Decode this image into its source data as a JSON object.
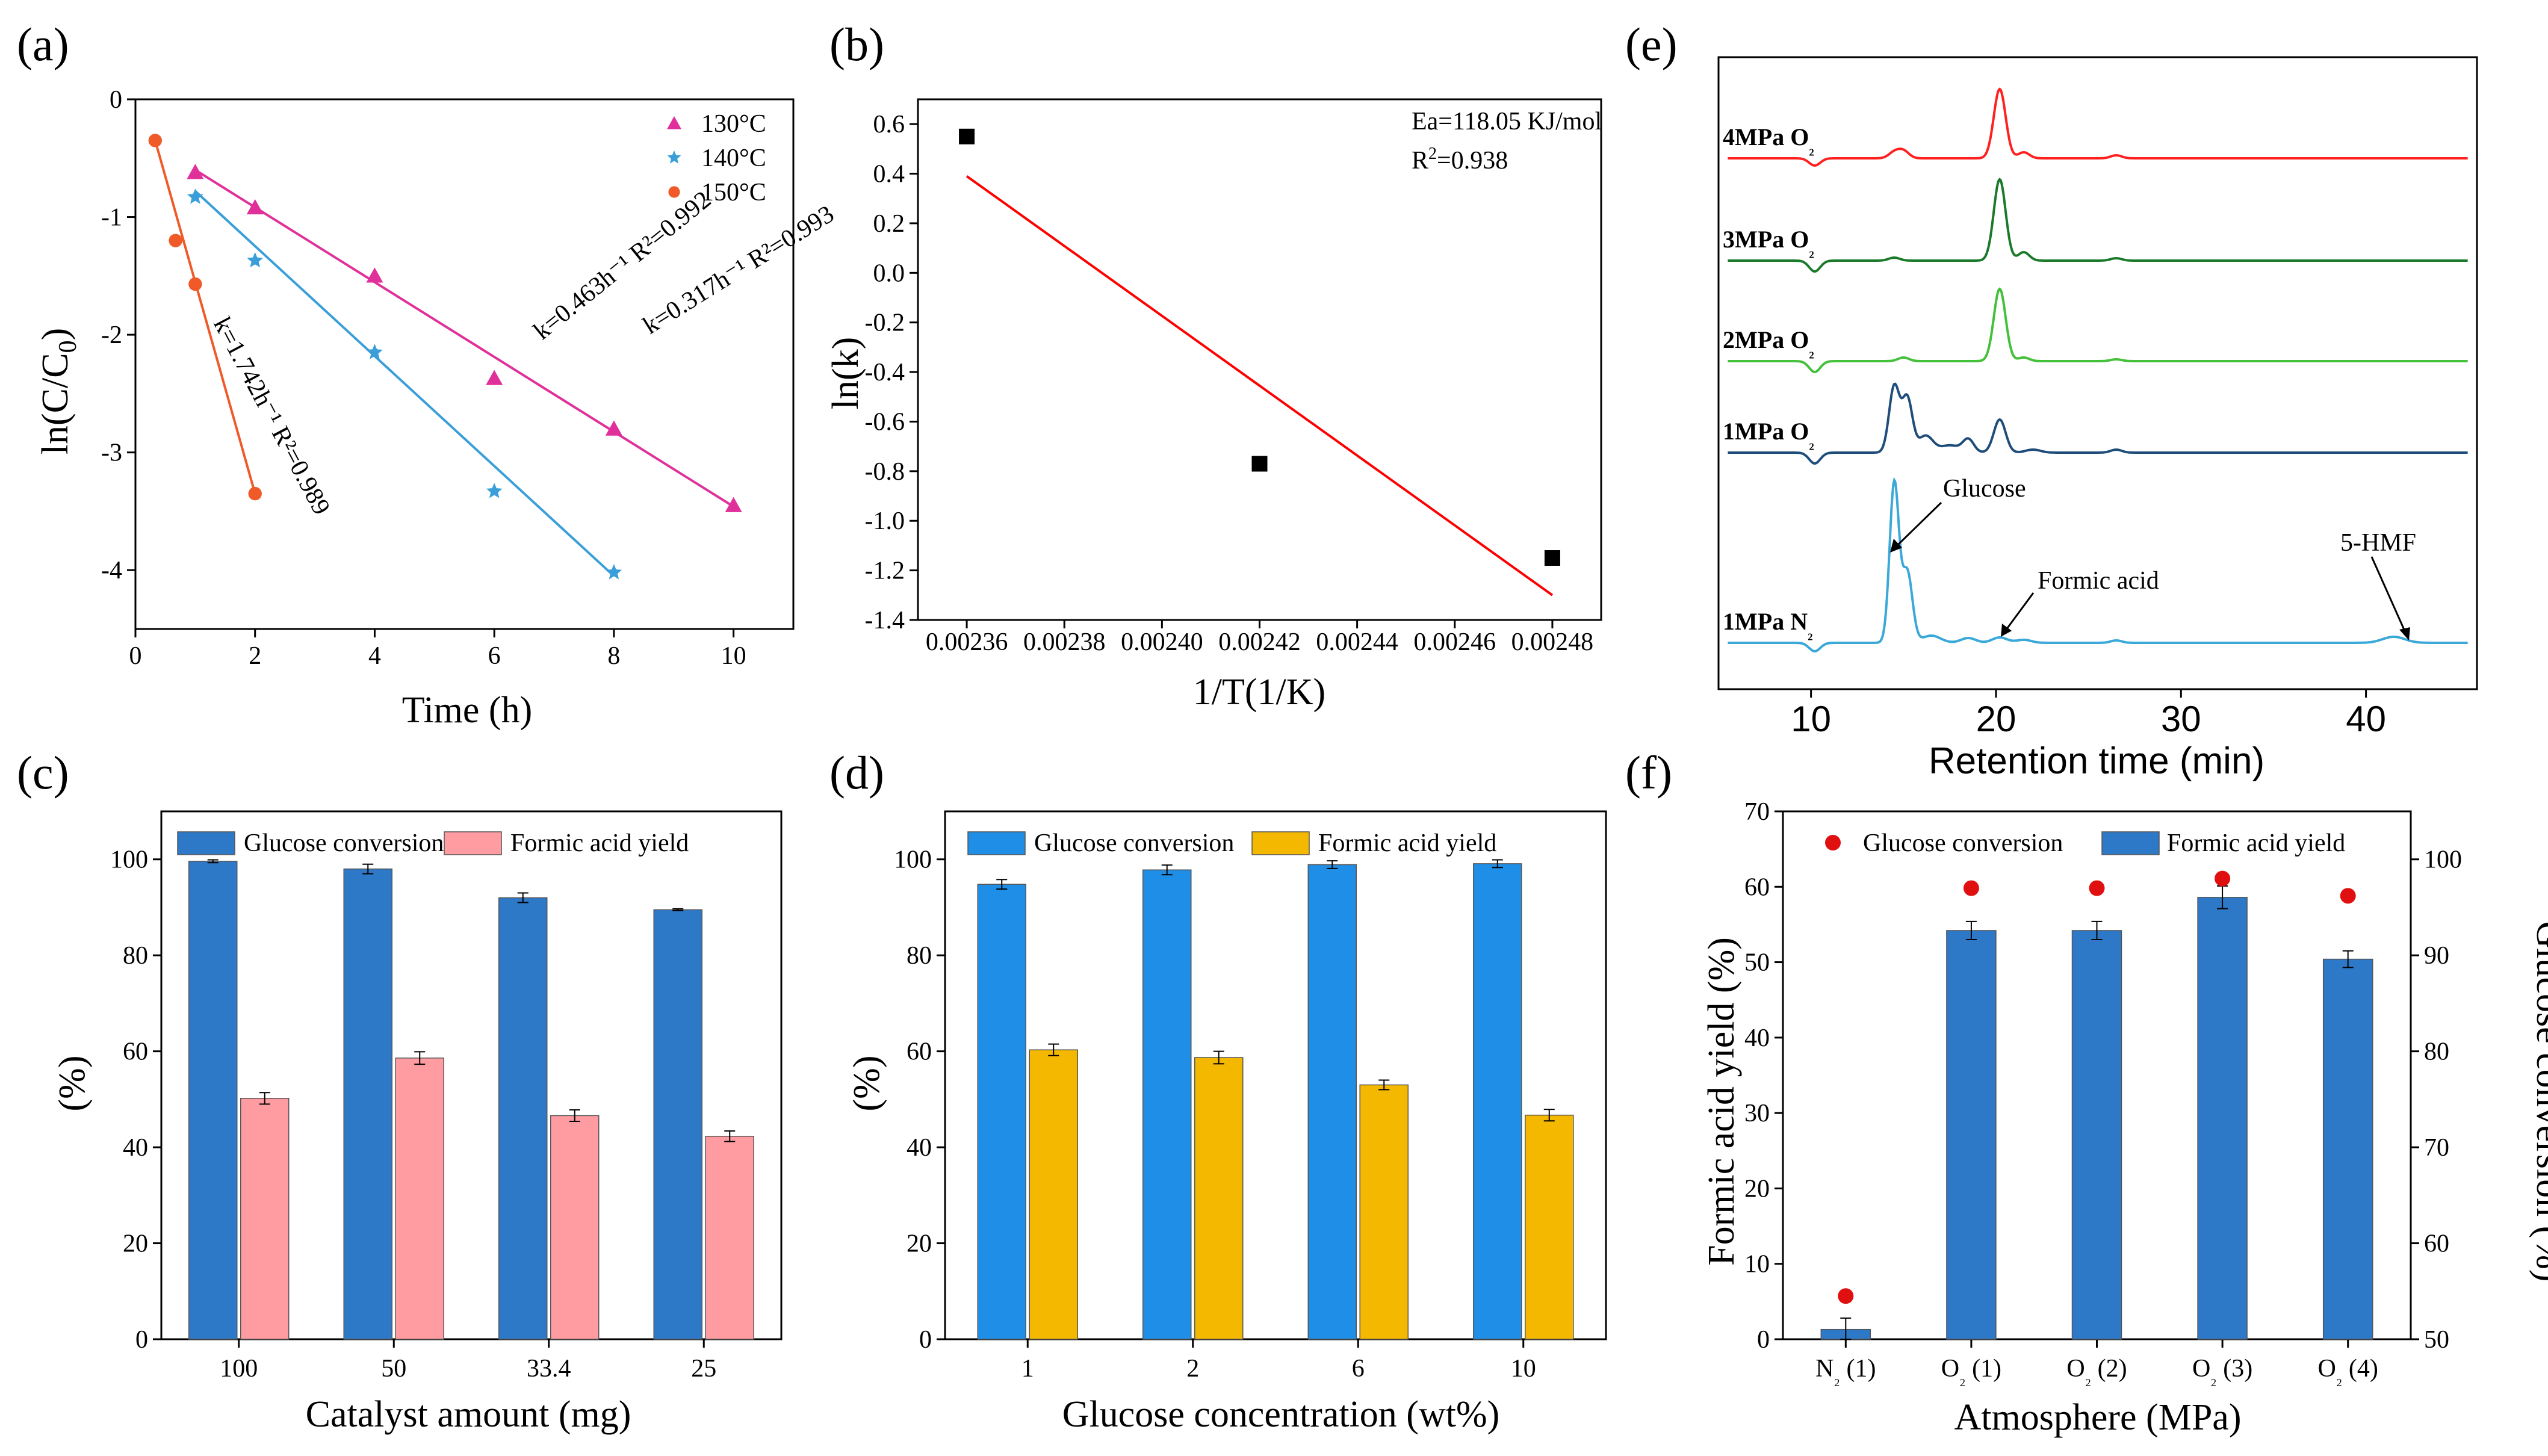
{
  "chart_data": [
    {
      "panel": "(a)",
      "type": "scatter",
      "xlabel": "Time (h)",
      "ylabel": "ln(C/C0)",
      "xlim": [
        0,
        11
      ],
      "ylim": [
        -4.5,
        0
      ],
      "xticks": [
        0,
        2,
        4,
        6,
        8,
        10
      ],
      "yticks": [
        0,
        -1,
        -2,
        -3,
        -4
      ],
      "legend_position": "top-right",
      "series": [
        {
          "name": "130°C",
          "color": "#e0309a",
          "marker": "triangle",
          "x": [
            1,
            2,
            4,
            6,
            8,
            10
          ],
          "y": [
            -0.62,
            -0.92,
            -1.5,
            -2.37,
            -2.8,
            -3.45
          ],
          "fit": {
            "x0": 1,
            "y0": -0.6,
            "x1": 10,
            "y1": -3.46
          },
          "annotation": "k=0.317h⁻¹ R²=0.993"
        },
        {
          "name": "140°C",
          "color": "#3a9fd8",
          "marker": "star",
          "x": [
            1,
            2,
            4,
            6,
            8
          ],
          "y": [
            -0.83,
            -1.37,
            -2.15,
            -3.33,
            -4.02
          ],
          "fit": {
            "x0": 1,
            "y0": -0.78,
            "x1": 8,
            "y1": -4.05
          },
          "annotation": "k=0.463h⁻¹ R²=0.992"
        },
        {
          "name": "150°C",
          "color": "#f05a28",
          "marker": "circle",
          "x": [
            0.33,
            0.67,
            1,
            2
          ],
          "y": [
            -0.35,
            -1.2,
            -1.57,
            -3.35
          ],
          "fit": {
            "x0": 0.33,
            "y0": -0.35,
            "x1": 2,
            "y1": -3.35
          },
          "annotation": "k=1.742h⁻¹ R²=0.989"
        }
      ]
    },
    {
      "panel": "(b)",
      "type": "scatter",
      "xlabel": "1/T(1/K)",
      "ylabel": "ln(k)",
      "xlim": [
        0.00235,
        0.00249
      ],
      "ylim": [
        -1.4,
        0.7
      ],
      "xticks": [
        "0.00236",
        "0.00238",
        "0.00240",
        "0.00242",
        "0.00244",
        "0.00246",
        "0.00248"
      ],
      "yticks": [
        "0.6",
        "0.4",
        "0.2",
        "0.0",
        "-0.2",
        "-0.4",
        "-0.6",
        "-0.8",
        "-1.0",
        "-1.2",
        "-1.4"
      ],
      "points": {
        "x": [
          0.00236,
          0.00242,
          0.00248
        ],
        "y": [
          0.55,
          -0.77,
          -1.15
        ]
      },
      "fit": {
        "x0": 0.00236,
        "y0": 0.39,
        "x1": 0.00248,
        "y1": -1.3,
        "color": "#ff0000"
      },
      "annotation_1": "Ea=118.05 KJ/mol",
      "annotation_2": "R²=0.938"
    },
    {
      "panel": "(e)",
      "type": "line",
      "xlabel": "Retention time (min)",
      "xlim": [
        5,
        46
      ],
      "xticks": [
        10,
        20,
        30,
        40
      ],
      "traces": [
        {
          "name": "4MPa O₂",
          "color": "#ff2020"
        },
        {
          "name": "3MPa O₂",
          "color": "#1a7a2a"
        },
        {
          "name": "2MPa O₂",
          "color": "#44c03a"
        },
        {
          "name": "1MPa O₂",
          "color": "#1f4d7a"
        },
        {
          "name": "1MPa N₂",
          "color": "#3aa8d8"
        }
      ],
      "peak_labels": [
        "Glucose",
        "Formic acid",
        "5-HMF"
      ]
    },
    {
      "panel": "(c)",
      "type": "bar",
      "xlabel": "Catalyst amount (mg)",
      "ylabel": "(%)",
      "ylim": [
        0,
        110
      ],
      "yticks": [
        0,
        20,
        40,
        60,
        80,
        100
      ],
      "categories": [
        "100",
        "50",
        "33.4",
        "25"
      ],
      "series": [
        {
          "name": "Glucose conversion",
          "color": "#2e78c8",
          "values": [
            99.6,
            98.0,
            92.0,
            89.5
          ],
          "errors": [
            0.3,
            1.0,
            1.0,
            0.2
          ]
        },
        {
          "name": "Formic acid yield",
          "color": "#ff9ca2",
          "values": [
            50.2,
            58.6,
            46.6,
            42.3
          ],
          "errors": [
            1.2,
            1.3,
            1.2,
            1.1
          ]
        }
      ]
    },
    {
      "panel": "(d)",
      "type": "bar",
      "xlabel": "Glucose concentration (wt%)",
      "ylabel": "(%)",
      "ylim": [
        0,
        110
      ],
      "yticks": [
        0,
        20,
        40,
        60,
        80,
        100
      ],
      "categories": [
        "1",
        "2",
        "6",
        "10"
      ],
      "series": [
        {
          "name": "Glucose conversion",
          "color": "#1f8ee6",
          "values": [
            94.8,
            97.8,
            98.9,
            99.1
          ],
          "errors": [
            1.0,
            1.0,
            0.8,
            0.8
          ]
        },
        {
          "name": "Formic acid yield",
          "color": "#f5b800",
          "values": [
            60.3,
            58.7,
            53.0,
            46.7
          ],
          "errors": [
            1.2,
            1.3,
            1.0,
            1.2
          ]
        }
      ]
    },
    {
      "panel": "(f)",
      "type": "bar",
      "xlabel": "Atmosphere (MPa)",
      "ylabel": "Formic acid yield (%)",
      "ylabel_right": "Glucose conversion (%)",
      "ylim": [
        0,
        70
      ],
      "ylim_right": [
        50,
        105
      ],
      "yticks": [
        0,
        10,
        20,
        30,
        40,
        50,
        60,
        70
      ],
      "yticks_right": [
        50,
        60,
        70,
        80,
        90,
        100
      ],
      "categories": [
        "N₂ (1)",
        "O₂ (1)",
        "O₂ (2)",
        "O₂ (3)",
        "O₂ (4)"
      ],
      "bars": {
        "name": "Formic acid yield",
        "color": "#2e78c8",
        "values": [
          1.3,
          54.2,
          54.2,
          58.6,
          50.4
        ],
        "errors": [
          1.5,
          1.2,
          1.2,
          1.5,
          1.1
        ]
      },
      "points": {
        "name": "Glucose conversion",
        "color": "#e01010",
        "values": [
          54.5,
          97.0,
          97.0,
          98.0,
          96.2
        ]
      }
    }
  ],
  "labels": {
    "a_panel": "(a)",
    "b_panel": "(b)",
    "c_panel": "(c)",
    "d_panel": "(d)",
    "e_panel": "(e)",
    "f_panel": "(f)",
    "a_xlabel": "Time (h)",
    "b_xlabel": "1/T(1/K)",
    "b_ylabel": "ln(k)",
    "b_ann1": "Ea=118.05 KJ/mol",
    "c_xlabel": "Catalyst amount (mg)",
    "c_ylabel": "(%)",
    "d_xlabel": "Glucose concentration (wt%)",
    "d_ylabel": "(%)",
    "e_xlabel": "Retention time (min)",
    "e_glucose": "Glucose",
    "e_formic": "Formic acid",
    "e_hmf": "5-HMF",
    "f_xlabel": "Atmosphere (MPa)",
    "f_ylabel": "Formic acid yield (%)",
    "f_ylabel_right": "Glucose conversion (%)"
  }
}
